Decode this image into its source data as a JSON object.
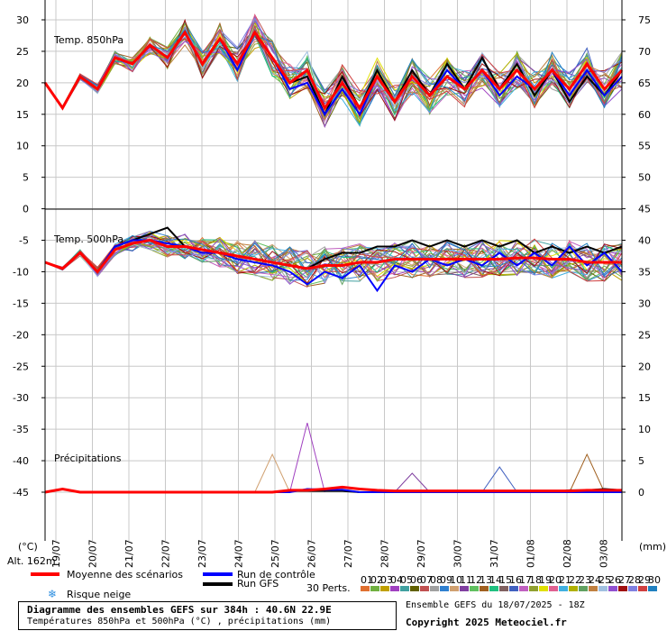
{
  "chart_data": {
    "type": "line",
    "left_axis_ticks": [
      30,
      25,
      20,
      15,
      10,
      5,
      0,
      -5,
      -10,
      -15,
      -20,
      -25,
      -30,
      -35,
      -40,
      -45
    ],
    "right_axis_ticks": [
      75,
      70,
      65,
      60,
      55,
      50,
      45,
      40,
      35,
      30,
      25,
      20,
      15,
      10,
      5,
      0
    ],
    "x_dates": [
      "19/07",
      "20/07",
      "21/07",
      "22/07",
      "23/07",
      "24/07",
      "25/07",
      "26/07",
      "27/07",
      "28/07",
      "29/07",
      "30/07",
      "31/07",
      "01/08",
      "02/08",
      "03/08"
    ],
    "panels": [
      {
        "label": "Temp. 850hPa",
        "unit": "°C"
      },
      {
        "label": "Temp. 500hPa",
        "unit": "°C"
      },
      {
        "label": "Précipitations",
        "unit": "mm"
      }
    ],
    "series": [
      {
        "name": "Moyenne des scénarios",
        "color": "#ff0000",
        "t850": [
          20,
          16,
          21,
          19,
          24,
          23,
          26,
          24,
          28,
          23,
          27,
          23,
          28,
          24,
          20,
          22,
          16,
          20,
          16,
          21,
          17,
          21,
          18,
          21,
          19,
          22,
          19,
          22,
          19,
          22,
          19,
          23,
          19,
          22
        ],
        "t500": [
          -8.5,
          -9.5,
          -7,
          -10,
          -6.5,
          -5.5,
          -5,
          -6,
          -6,
          -6.5,
          -7,
          -7.5,
          -8,
          -8.5,
          -9,
          -9.5,
          -9,
          -9,
          -8.5,
          -8.5,
          -8,
          -8,
          -8,
          -8,
          -8,
          -8,
          -8,
          -7.8,
          -7.8,
          -8,
          -8,
          -8.5,
          -8.5,
          -8.5
        ],
        "precip": [
          0,
          0.5,
          0,
          0,
          0,
          0,
          0,
          0,
          0,
          0,
          0,
          0,
          0,
          0,
          0.3,
          0.3,
          0.5,
          0.8,
          0.5,
          0.3,
          0.2,
          0.2,
          0.2,
          0.2,
          0.2,
          0.2,
          0.2,
          0.2,
          0.2,
          0.2,
          0.2,
          0.3,
          0.3,
          0.3
        ]
      },
      {
        "name": "Run de contrôle",
        "color": "#0000ff",
        "t850": [
          20,
          16,
          21,
          19,
          24,
          23,
          26,
          24,
          28,
          23,
          27,
          22,
          28,
          24,
          19,
          20,
          15,
          19,
          15,
          21,
          17,
          21,
          18,
          22,
          19,
          22,
          18,
          21,
          19,
          22,
          18,
          22,
          18,
          21
        ],
        "t500": [
          -8.5,
          -9.5,
          -7,
          -10,
          -6,
          -5,
          -5,
          -5.5,
          -6,
          -7,
          -7,
          -8,
          -8.5,
          -9,
          -10,
          -12,
          -10,
          -11,
          -9,
          -13,
          -9,
          -10,
          -8,
          -9,
          -8,
          -9,
          -7,
          -9,
          -7,
          -9,
          -6,
          -9,
          -7,
          -10
        ],
        "precip": [
          0,
          0.5,
          0,
          0,
          0,
          0,
          0,
          0,
          0,
          0,
          0,
          0,
          0,
          0,
          0,
          0.5,
          0.4,
          0.4,
          0,
          0,
          0,
          0,
          0,
          0,
          0,
          0,
          0,
          0,
          0,
          0,
          0,
          0,
          0,
          0
        ]
      },
      {
        "name": "Run GFS",
        "color": "#000000",
        "t850": [
          20,
          16,
          21,
          19,
          24,
          23,
          26,
          24,
          28,
          23,
          27,
          23,
          28,
          24,
          20,
          21,
          15,
          21,
          16,
          22,
          17,
          22,
          18,
          23,
          19,
          24,
          19,
          23,
          18,
          22,
          17,
          21,
          18,
          22
        ],
        "t500": [
          -8.5,
          -9.5,
          -7,
          -10,
          -6,
          -5,
          -4,
          -3,
          -6,
          -7,
          -7,
          -7.5,
          -8,
          -8.5,
          -9,
          -9.5,
          -8,
          -7,
          -7,
          -6,
          -6,
          -5,
          -6,
          -5,
          -6,
          -5,
          -6,
          -5,
          -7,
          -6,
          -7,
          -6,
          -7,
          -6
        ],
        "precip": [
          0,
          0.5,
          0,
          0,
          0,
          0,
          0,
          0,
          0,
          0,
          0,
          0,
          0,
          0,
          0.2,
          0.2,
          0.2,
          0.2,
          0,
          0,
          0,
          0,
          0,
          0,
          0,
          0,
          0,
          0,
          0,
          0,
          0.3,
          0.3,
          0.5,
          0.3
        ]
      }
    ],
    "perturbation_colors": [
      "#e07030",
      "#70b040",
      "#c0a000",
      "#a040c0",
      "#40a0a0",
      "#606000",
      "#c05050",
      "#a0a0a0",
      "#3080d0",
      "#d0a070",
      "#8040a0",
      "#60c060",
      "#a06020",
      "#20c080",
      "#806060",
      "#4060c0",
      "#c060c0",
      "#90a030",
      "#e0e000",
      "#e06090",
      "#40b0e0",
      "#b0b000",
      "#60a060",
      "#c08040",
      "#a0c0e0",
      "#9050d0",
      "#a01010",
      "#8080e0",
      "#d04040",
      "#2080c0"
    ]
  },
  "labels": {
    "t850": "Temp. 850hPa",
    "t500": "Temp. 500hPa",
    "precip": "Précipitations",
    "unit_left": "(°C)",
    "unit_right": "(mm)",
    "altitude": "Alt. 162m"
  },
  "legend": {
    "mean": "Moyenne des scénarios",
    "control": "Run de contrôle",
    "gfs": "Run GFS",
    "snow": "Risque neige",
    "perts": "30 Perts.",
    "pert_numbers": [
      "01",
      "02",
      "03",
      "04",
      "05",
      "06",
      "07",
      "08",
      "09",
      "10",
      "11",
      "12",
      "13",
      "14",
      "15",
      "16",
      "17",
      "18",
      "19",
      "20",
      "21",
      "22",
      "23",
      "24",
      "25",
      "26",
      "27",
      "28",
      "29",
      "30"
    ]
  },
  "footer": {
    "title": "Diagramme des ensembles GEFS sur 384h : 40.6N 22.9E",
    "subtitle": "Températures 850hPa et 500hPa (°C) , précipitations (mm)",
    "run": "Ensemble GEFS du 18/07/2025 - 18Z",
    "copyright": "Copyright 2025 Meteociel.fr"
  }
}
